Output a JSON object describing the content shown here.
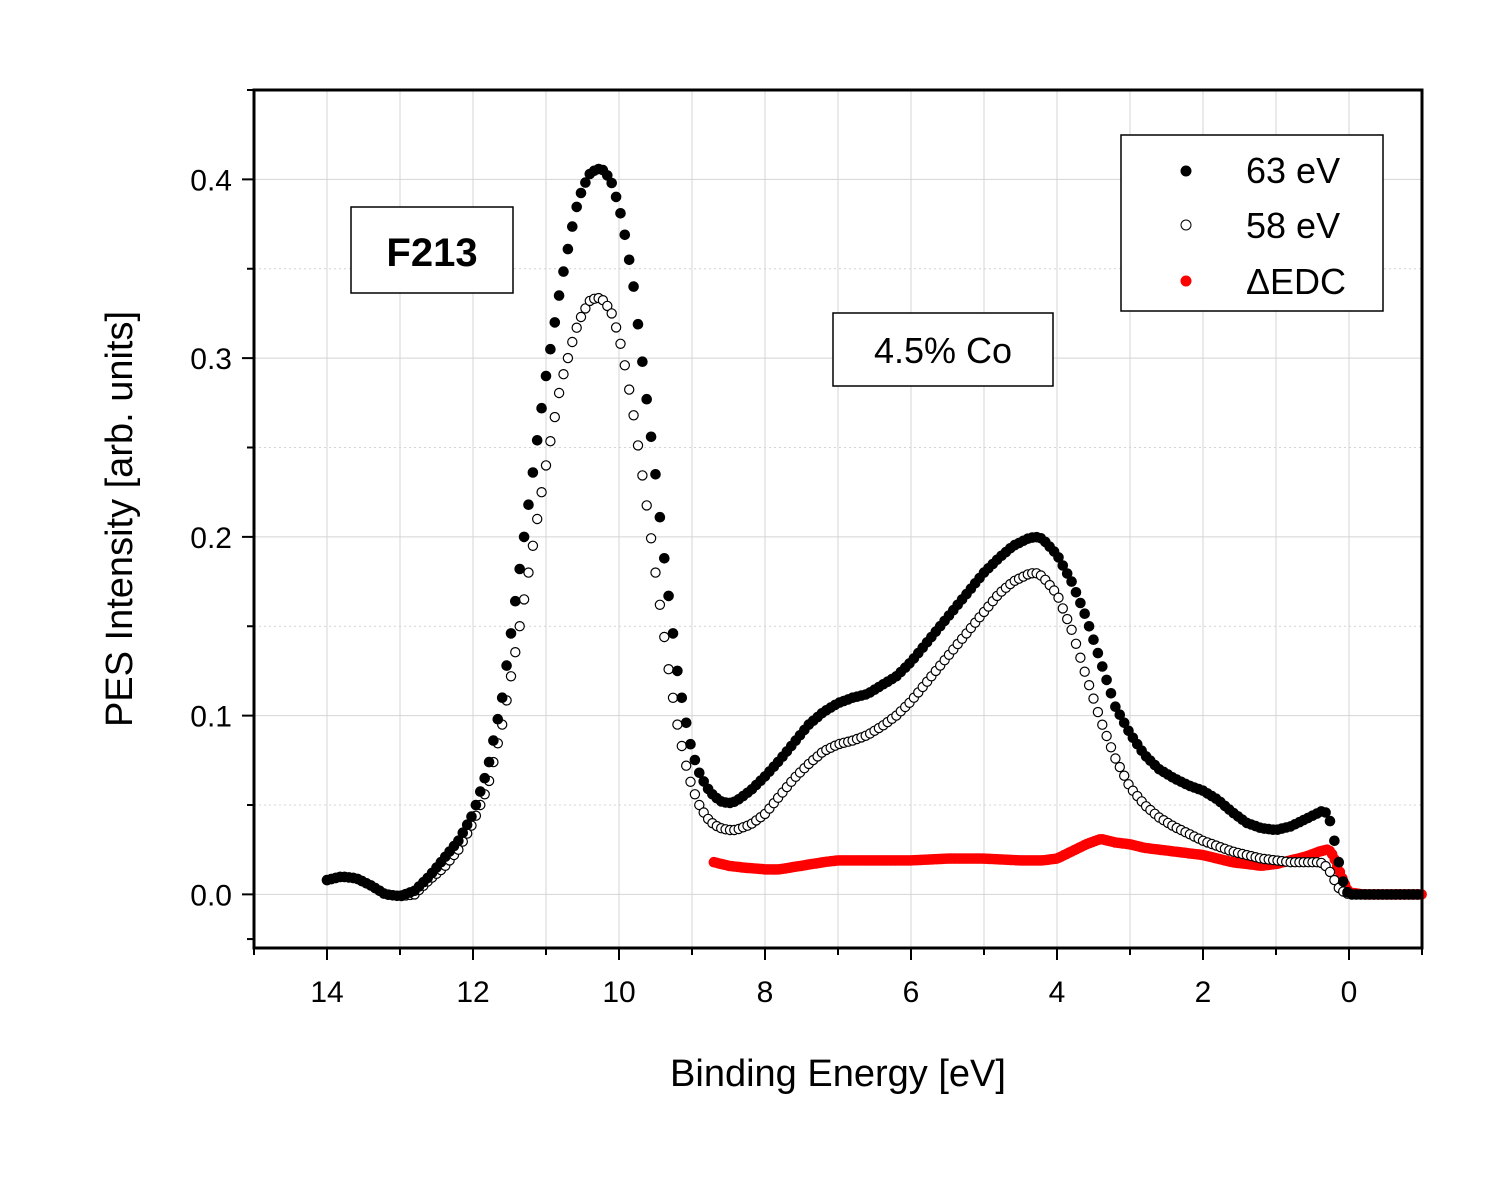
{
  "chart_data": {
    "type": "scatter",
    "title": "",
    "xlabel": "Binding Energy [eV]",
    "ylabel": "PES Intensity [arb. units]",
    "xlim": [
      15,
      -1
    ],
    "ylim": [
      -0.03,
      0.45
    ],
    "x_reversed": true,
    "grid": true,
    "x_ticks": [
      14,
      12,
      10,
      8,
      6,
      4,
      2,
      0
    ],
    "x_tick_labels": [
      "14",
      "12",
      "10",
      "8",
      "6",
      "4",
      "2",
      "0"
    ],
    "y_ticks": [
      0.0,
      0.1,
      0.2,
      0.3,
      0.4
    ],
    "y_tick_labels": [
      "0.0",
      "0.1",
      "0.2",
      "0.3",
      "0.4"
    ],
    "legend_position": "top-right",
    "annotations": [
      "F213",
      "4.5% Co"
    ],
    "series": [
      {
        "name": "63 eV",
        "marker": "filled-circle",
        "color": "#000000",
        "x": [
          14.0,
          13.8,
          13.6,
          13.4,
          13.2,
          13.0,
          12.8,
          12.6,
          12.4,
          12.2,
          12.0,
          11.8,
          11.6,
          11.4,
          11.2,
          11.0,
          10.8,
          10.6,
          10.5,
          10.4,
          10.3,
          10.2,
          10.1,
          10.0,
          9.9,
          9.8,
          9.7,
          9.6,
          9.5,
          9.4,
          9.3,
          9.2,
          9.1,
          9.0,
          8.9,
          8.8,
          8.7,
          8.6,
          8.5,
          8.4,
          8.2,
          8.0,
          7.8,
          7.6,
          7.4,
          7.2,
          7.0,
          6.8,
          6.6,
          6.4,
          6.2,
          6.0,
          5.8,
          5.6,
          5.4,
          5.2,
          5.0,
          4.8,
          4.6,
          4.4,
          4.3,
          4.2,
          4.0,
          3.8,
          3.6,
          3.4,
          3.2,
          3.0,
          2.8,
          2.6,
          2.4,
          2.2,
          2.0,
          1.8,
          1.6,
          1.4,
          1.2,
          1.0,
          0.8,
          0.6,
          0.4,
          0.35,
          0.3,
          0.25,
          0.2,
          0.15,
          0.1,
          0.05,
          0.0,
          -0.2,
          -0.4,
          -0.6,
          -0.8,
          -1.0
        ],
        "y": [
          0.008,
          0.01,
          0.009,
          0.005,
          0.0,
          -0.001,
          0.002,
          0.01,
          0.02,
          0.03,
          0.045,
          0.07,
          0.11,
          0.17,
          0.23,
          0.29,
          0.34,
          0.382,
          0.395,
          0.403,
          0.406,
          0.405,
          0.398,
          0.385,
          0.365,
          0.34,
          0.305,
          0.27,
          0.235,
          0.195,
          0.16,
          0.125,
          0.1,
          0.08,
          0.068,
          0.06,
          0.055,
          0.052,
          0.051,
          0.052,
          0.058,
          0.066,
          0.075,
          0.085,
          0.095,
          0.102,
          0.107,
          0.11,
          0.112,
          0.117,
          0.122,
          0.13,
          0.14,
          0.15,
          0.16,
          0.17,
          0.18,
          0.188,
          0.195,
          0.199,
          0.2,
          0.199,
          0.19,
          0.175,
          0.155,
          0.13,
          0.105,
          0.09,
          0.078,
          0.07,
          0.065,
          0.061,
          0.058,
          0.053,
          0.046,
          0.04,
          0.037,
          0.036,
          0.038,
          0.042,
          0.046,
          0.047,
          0.045,
          0.04,
          0.03,
          0.02,
          0.01,
          0.003,
          0.0,
          0.0,
          0.0,
          0.0,
          0.0,
          0.0
        ]
      },
      {
        "name": "58 eV",
        "marker": "open-circle",
        "color": "#000000",
        "x": [
          14.0,
          13.8,
          13.6,
          13.4,
          13.2,
          13.0,
          12.8,
          12.6,
          12.4,
          12.2,
          12.0,
          11.8,
          11.6,
          11.4,
          11.2,
          11.0,
          10.8,
          10.6,
          10.5,
          10.4,
          10.3,
          10.2,
          10.1,
          10.0,
          9.9,
          9.8,
          9.7,
          9.6,
          9.5,
          9.4,
          9.3,
          9.2,
          9.1,
          9.0,
          8.9,
          8.8,
          8.7,
          8.6,
          8.5,
          8.4,
          8.2,
          8.0,
          7.8,
          7.6,
          7.4,
          7.2,
          7.0,
          6.8,
          6.6,
          6.4,
          6.2,
          6.0,
          5.8,
          5.6,
          5.4,
          5.2,
          5.0,
          4.8,
          4.6,
          4.4,
          4.3,
          4.2,
          4.0,
          3.8,
          3.6,
          3.4,
          3.2,
          3.0,
          2.8,
          2.6,
          2.4,
          2.2,
          2.0,
          1.8,
          1.6,
          1.4,
          1.2,
          1.0,
          0.8,
          0.6,
          0.4,
          0.35,
          0.3,
          0.25,
          0.2,
          0.15,
          0.1,
          0.05,
          0.0,
          -0.2,
          -0.4,
          -0.6,
          -0.8,
          -1.0
        ],
        "y": [
          0.008,
          0.01,
          0.009,
          0.005,
          0.0,
          -0.001,
          0.0,
          0.008,
          0.015,
          0.025,
          0.04,
          0.06,
          0.095,
          0.14,
          0.19,
          0.24,
          0.285,
          0.315,
          0.325,
          0.332,
          0.334,
          0.332,
          0.325,
          0.312,
          0.292,
          0.268,
          0.24,
          0.212,
          0.18,
          0.15,
          0.12,
          0.095,
          0.075,
          0.06,
          0.05,
          0.043,
          0.039,
          0.037,
          0.036,
          0.036,
          0.039,
          0.045,
          0.055,
          0.065,
          0.073,
          0.08,
          0.084,
          0.086,
          0.089,
          0.094,
          0.1,
          0.108,
          0.118,
          0.128,
          0.138,
          0.148,
          0.158,
          0.168,
          0.175,
          0.179,
          0.18,
          0.178,
          0.168,
          0.148,
          0.122,
          0.097,
          0.076,
          0.06,
          0.05,
          0.043,
          0.038,
          0.034,
          0.03,
          0.027,
          0.024,
          0.022,
          0.02,
          0.019,
          0.018,
          0.018,
          0.018,
          0.017,
          0.015,
          0.012,
          0.008,
          0.004,
          0.002,
          0.001,
          0.0,
          0.0,
          0.0,
          0.0,
          0.0,
          0.0
        ]
      },
      {
        "name": "ΔEDC",
        "marker": "filled-circle",
        "color": "#ff0000",
        "x": [
          8.7,
          8.5,
          8.3,
          8.0,
          7.8,
          7.5,
          7.2,
          7.0,
          6.5,
          6.0,
          5.5,
          5.0,
          4.5,
          4.2,
          4.0,
          3.8,
          3.6,
          3.4,
          3.2,
          3.0,
          2.8,
          2.6,
          2.4,
          2.2,
          2.0,
          1.8,
          1.6,
          1.4,
          1.2,
          1.0,
          0.8,
          0.6,
          0.4,
          0.3,
          0.25,
          0.2,
          0.15,
          0.1,
          0.05,
          0.0,
          -0.2,
          -0.4,
          -0.6,
          -0.8,
          -1.0
        ],
        "y": [
          0.018,
          0.016,
          0.015,
          0.014,
          0.014,
          0.016,
          0.018,
          0.019,
          0.019,
          0.019,
          0.02,
          0.02,
          0.019,
          0.019,
          0.02,
          0.024,
          0.028,
          0.031,
          0.029,
          0.028,
          0.026,
          0.025,
          0.024,
          0.023,
          0.022,
          0.02,
          0.018,
          0.017,
          0.016,
          0.017,
          0.019,
          0.021,
          0.024,
          0.025,
          0.024,
          0.02,
          0.015,
          0.01,
          0.005,
          0.001,
          0.0,
          0.0,
          0.0,
          0.0,
          0.0
        ]
      }
    ]
  }
}
